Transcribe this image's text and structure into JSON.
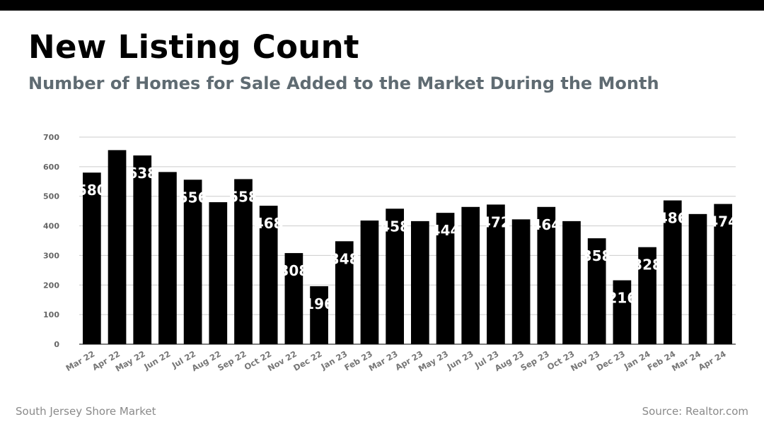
{
  "header": {
    "title": "New Listing Count",
    "subtitle": "Number of Homes for Sale Added to the Market During the Month"
  },
  "footer": {
    "left": "South Jersey Shore Market",
    "right": "Source: Realtor.com"
  },
  "colors": {
    "bar": "#000000",
    "grid": "#cccccc",
    "label": "#ffffff",
    "subtitle": "#5f6b72"
  },
  "chart_data": {
    "type": "bar",
    "title": "New Listing Count",
    "xlabel": "",
    "ylabel": "",
    "ylim": [
      0,
      700
    ],
    "yticks": [
      0,
      100,
      200,
      300,
      400,
      500,
      600,
      700
    ],
    "grid": true,
    "categories": [
      "Mar 22",
      "Apr 22",
      "May 22",
      "Jun 22",
      "Jul 22",
      "Aug 22",
      "Sep 22",
      "Oct 22",
      "Nov 22",
      "Dec 22",
      "Jan 23",
      "Feb 23",
      "Mar 23",
      "Apr 23",
      "May 23",
      "Jun 23",
      "Jul 23",
      "Aug 23",
      "Sep 23",
      "Oct 23",
      "Nov 23",
      "Dec 23",
      "Jan 24",
      "Feb 24",
      "Mar 24",
      "Apr 24"
    ],
    "values": [
      580,
      656,
      638,
      582,
      556,
      480,
      558,
      468,
      308,
      196,
      348,
      418,
      458,
      416,
      444,
      464,
      472,
      422,
      464,
      416,
      358,
      216,
      328,
      486,
      440,
      474
    ],
    "data_labels": [
      "580",
      "",
      "638",
      "",
      "556",
      "",
      "558",
      "468",
      "308",
      "196",
      "348",
      "",
      "458",
      "",
      "444",
      "",
      "472",
      "",
      "464",
      "",
      "358",
      "216",
      "328",
      "486",
      "",
      "474"
    ]
  }
}
